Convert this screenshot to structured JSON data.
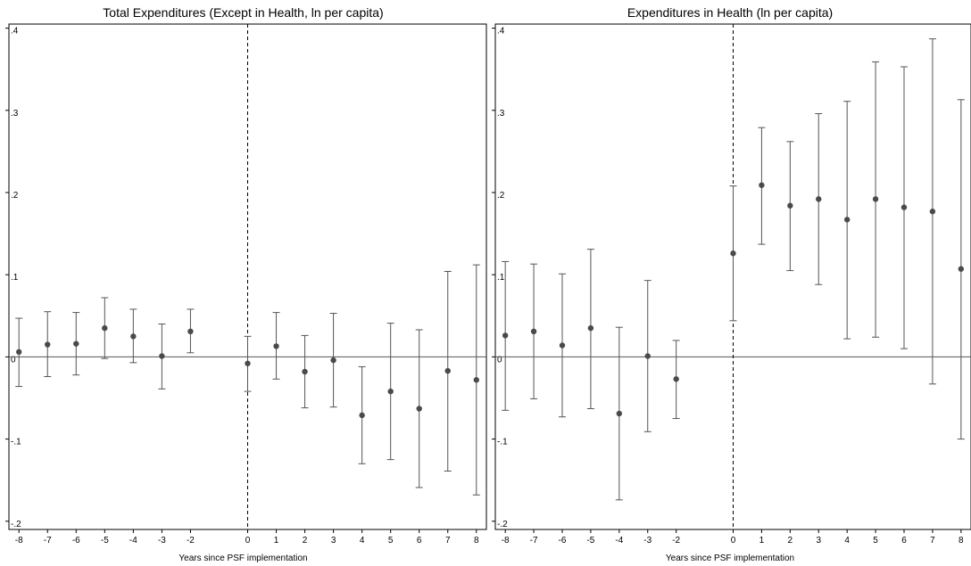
{
  "chart_data": [
    {
      "type": "scatter",
      "title": "Total Expenditures (Except in Health, ln per capita)",
      "xlabel": "Years since PSF implementation",
      "ylabel": "",
      "x": [
        -8,
        -7,
        -6,
        -5,
        -4,
        -3,
        -2,
        0,
        1,
        2,
        3,
        4,
        5,
        6,
        7,
        8
      ],
      "series": [
        {
          "values": [
            0.006,
            0.015,
            0.016,
            0.035,
            0.025,
            0.001,
            0.031,
            -0.008,
            0.013,
            -0.018,
            -0.004,
            -0.071,
            -0.042,
            -0.063,
            -0.017,
            -0.028
          ],
          "ci_low": [
            -0.036,
            -0.024,
            -0.022,
            -0.002,
            -0.007,
            -0.039,
            0.005,
            -0.042,
            -0.027,
            -0.062,
            -0.061,
            -0.13,
            -0.125,
            -0.159,
            -0.139,
            -0.168
          ],
          "ci_high": [
            0.047,
            0.055,
            0.054,
            0.072,
            0.058,
            0.04,
            0.058,
            0.025,
            0.054,
            0.026,
            0.053,
            -0.012,
            0.041,
            0.033,
            0.104,
            0.112
          ]
        }
      ],
      "xticks": [
        "-8",
        "-7",
        "-6",
        "-5",
        "-4",
        "-3",
        "-2",
        "0",
        "1",
        "2",
        "3",
        "4",
        "5",
        "6",
        "7",
        "8"
      ],
      "yticks": [
        ".4",
        ".3",
        ".2",
        ".1",
        "0",
        "-.1",
        "-.2"
      ],
      "ytick_values": [
        0.4,
        0.3,
        0.2,
        0.1,
        0,
        -0.1,
        -0.2
      ],
      "xlim": [
        -8.35,
        8.35
      ],
      "ylim": [
        -0.21,
        0.405
      ],
      "reference_x": 0,
      "reference_y": 0,
      "grid": false
    },
    {
      "type": "scatter",
      "title": "Expenditures in Health (ln per capita)",
      "xlabel": "Years since PSF implementation",
      "ylabel": "",
      "x": [
        -8,
        -7,
        -6,
        -5,
        -4,
        -3,
        -2,
        0,
        1,
        2,
        3,
        4,
        5,
        6,
        7,
        8
      ],
      "series": [
        {
          "values": [
            0.026,
            0.031,
            0.014,
            0.035,
            -0.069,
            0.001,
            -0.027,
            0.126,
            0.209,
            0.184,
            0.192,
            0.167,
            0.192,
            0.182,
            0.177,
            0.107
          ],
          "ci_low": [
            -0.065,
            -0.051,
            -0.073,
            -0.063,
            -0.174,
            -0.091,
            -0.075,
            0.044,
            0.137,
            0.105,
            0.088,
            0.022,
            0.024,
            0.01,
            -0.033,
            -0.1
          ],
          "ci_high": [
            0.116,
            0.113,
            0.101,
            0.131,
            0.036,
            0.093,
            0.02,
            0.208,
            0.279,
            0.262,
            0.296,
            0.311,
            0.359,
            0.353,
            0.387,
            0.313
          ]
        }
      ],
      "xticks": [
        "-8",
        "-7",
        "-6",
        "-5",
        "-4",
        "-3",
        "-2",
        "0",
        "1",
        "2",
        "3",
        "4",
        "5",
        "6",
        "7",
        "8"
      ],
      "yticks": [
        ".4",
        ".3",
        ".2",
        ".1",
        "0",
        "-.1",
        "-.2"
      ],
      "ytick_values": [
        0.4,
        0.3,
        0.2,
        0.1,
        0,
        -0.1,
        -0.2
      ],
      "xlim": [
        -8.35,
        8.35
      ],
      "ylim": [
        -0.21,
        0.405
      ],
      "reference_x": 0,
      "reference_y": 0,
      "grid": false
    }
  ]
}
